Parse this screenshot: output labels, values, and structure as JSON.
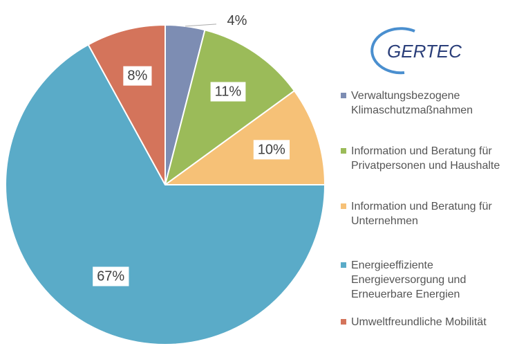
{
  "chart_data": {
    "type": "pie",
    "logo": "GERTEC",
    "categories": [
      "Verwaltungsbezogene Klimaschutzmaßnahmen",
      "Information und Beratung für Privatpersonen und Haushalte",
      "Information und Beratung für Unternehmen",
      "Energieeffiziente Energieversorgung und Erneuerbare Energien",
      "Umweltfreundliche Mobilität"
    ],
    "values": [
      4,
      11,
      10,
      67,
      8
    ],
    "value_labels": [
      "4%",
      "11%",
      "10%",
      "67%",
      "8%"
    ],
    "colors": [
      "#7d8db3",
      "#9bbb59",
      "#f6c177",
      "#5aabc8",
      "#d4745b"
    ],
    "legend": "right"
  }
}
